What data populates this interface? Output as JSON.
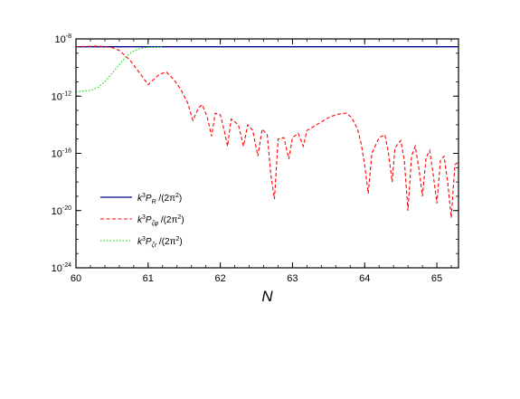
{
  "chart_data": {
    "type": "line",
    "title": "",
    "xlabel": "N",
    "ylabel": "",
    "xlim": [
      60,
      65.3
    ],
    "ylim_log10": [
      -24,
      -8
    ],
    "y_scale": "log",
    "x_ticks": [
      60,
      61,
      62,
      63,
      64,
      65
    ],
    "x_tick_labels": [
      "60",
      "61",
      "62",
      "63",
      "64",
      "65"
    ],
    "y_ticks_log10": [
      -8,
      -12,
      -16,
      -20,
      -24
    ],
    "y_tick_labels": [
      {
        "base": "10",
        "exp": "-8"
      },
      {
        "base": "10",
        "exp": "-12"
      },
      {
        "base": "10",
        "exp": "-16"
      },
      {
        "base": "10",
        "exp": "-20"
      },
      {
        "base": "10",
        "exp": "-24"
      }
    ],
    "grid": false,
    "legend_position": "bottom-left",
    "series": [
      {
        "key": "R",
        "legend": {
          "a": "k",
          "b": "3",
          "c": "P",
          "d": "R",
          "e": " /(2π",
          "f": "2",
          "g": ")"
        },
        "color": "#00008b",
        "style": "solid",
        "log10_points": [
          [
            60,
            -8.55
          ],
          [
            62,
            -8.55
          ],
          [
            64,
            -8.55
          ],
          [
            65.3,
            -8.55
          ]
        ]
      },
      {
        "key": "zeta_phi",
        "legend": {
          "a": "k",
          "b": "3",
          "c": "P",
          "d": "ζφ",
          "e": " /(2π",
          "f": "2",
          "g": ")"
        },
        "color": "#ff0000",
        "style": "dashed",
        "log10_points": [
          [
            60,
            -8.55
          ],
          [
            60.3,
            -8.5
          ],
          [
            60.5,
            -8.6
          ],
          [
            60.6,
            -8.8
          ],
          [
            60.75,
            -9.5
          ],
          [
            60.9,
            -10.5
          ],
          [
            61.0,
            -11.2
          ],
          [
            61.15,
            -10.5
          ],
          [
            61.25,
            -10.3
          ],
          [
            61.35,
            -10.8
          ],
          [
            61.45,
            -11.5
          ],
          [
            61.55,
            -12.5
          ],
          [
            61.62,
            -13.7
          ],
          [
            61.7,
            -12.8
          ],
          [
            61.75,
            -12.6
          ],
          [
            61.82,
            -13.5
          ],
          [
            61.88,
            -14.8
          ],
          [
            61.93,
            -13.2
          ],
          [
            62.0,
            -13.3
          ],
          [
            62.05,
            -14.3
          ],
          [
            62.1,
            -15.5
          ],
          [
            62.15,
            -13.6
          ],
          [
            62.25,
            -14.0
          ],
          [
            62.32,
            -15.5
          ],
          [
            62.38,
            -14.0
          ],
          [
            62.45,
            -14.4
          ],
          [
            62.52,
            -16.2
          ],
          [
            62.58,
            -14.3
          ],
          [
            62.65,
            -14.7
          ],
          [
            62.7,
            -17.5
          ],
          [
            62.75,
            -19.2
          ],
          [
            62.8,
            -15.0
          ],
          [
            62.88,
            -14.9
          ],
          [
            62.95,
            -16.4
          ],
          [
            63.0,
            -14.9
          ],
          [
            63.08,
            -14.6
          ],
          [
            63.15,
            -15.5
          ],
          [
            63.2,
            -14.4
          ],
          [
            63.3,
            -14.1
          ],
          [
            63.4,
            -13.8
          ],
          [
            63.5,
            -13.5
          ],
          [
            63.6,
            -13.3
          ],
          [
            63.7,
            -13.2
          ],
          [
            63.75,
            -13.2
          ],
          [
            63.82,
            -13.5
          ],
          [
            63.9,
            -14.3
          ],
          [
            63.95,
            -15.3
          ],
          [
            64.0,
            -16.8
          ],
          [
            64.05,
            -18.8
          ],
          [
            64.1,
            -16.0
          ],
          [
            64.2,
            -14.9
          ],
          [
            64.28,
            -14.7
          ],
          [
            64.33,
            -16.0
          ],
          [
            64.38,
            -18.0
          ],
          [
            64.42,
            -15.6
          ],
          [
            64.5,
            -15.1
          ],
          [
            64.55,
            -16.5
          ],
          [
            64.6,
            -20.0
          ],
          [
            64.65,
            -16.2
          ],
          [
            64.7,
            -15.5
          ],
          [
            64.75,
            -17.0
          ],
          [
            64.8,
            -19.0
          ],
          [
            64.85,
            -16.3
          ],
          [
            64.9,
            -15.8
          ],
          [
            64.95,
            -17.5
          ],
          [
            65.0,
            -19.5
          ],
          [
            65.05,
            -16.5
          ],
          [
            65.1,
            -16.2
          ],
          [
            65.15,
            -18.0
          ],
          [
            65.2,
            -20.5
          ],
          [
            65.25,
            -16.8
          ],
          [
            65.3,
            -16.6
          ]
        ]
      },
      {
        "key": "zeta_r",
        "legend": {
          "a": "k",
          "b": "3",
          "c": "P",
          "d": "ζr",
          "e": " /(2π",
          "f": "2",
          "g": ")"
        },
        "color": "#00dd00",
        "style": "dotted",
        "log10_points": [
          [
            60,
            -11.7
          ],
          [
            60.2,
            -11.6
          ],
          [
            60.3,
            -11.4
          ],
          [
            60.4,
            -11.0
          ],
          [
            60.5,
            -10.4
          ],
          [
            60.6,
            -9.8
          ],
          [
            60.7,
            -9.2
          ],
          [
            60.8,
            -8.85
          ],
          [
            60.9,
            -8.65
          ],
          [
            61.0,
            -8.58
          ],
          [
            61.2,
            -8.55
          ]
        ]
      }
    ]
  }
}
